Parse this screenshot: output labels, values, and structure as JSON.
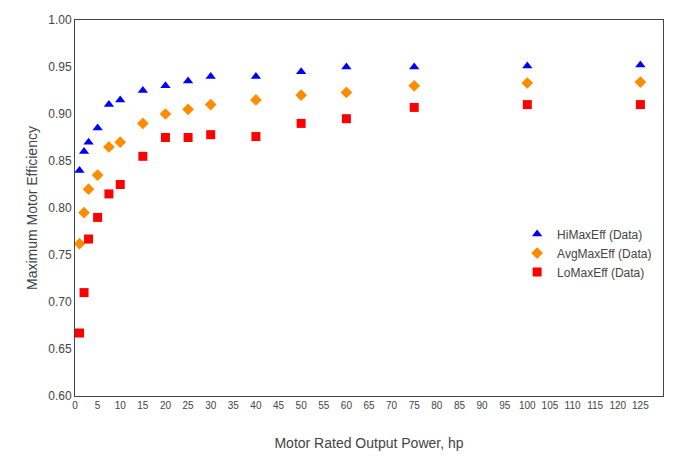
{
  "chart_data": {
    "type": "scatter",
    "x_label": "Motor Rated Output Power, hp",
    "y_label": "Maximum Motor Efficiency",
    "x": [
      1,
      2,
      3,
      5,
      7.5,
      10,
      15,
      20,
      25,
      30,
      40,
      50,
      60,
      75,
      100,
      125
    ],
    "series": [
      {
        "name": "HiMaxEff (Data)",
        "color": "#0000FF",
        "marker": "triangle",
        "values": [
          0.84,
          0.86,
          0.87,
          0.885,
          0.91,
          0.915,
          0.925,
          0.93,
          0.935,
          0.94,
          0.94,
          0.945,
          0.95,
          0.95,
          0.951,
          0.952
        ]
      },
      {
        "name": "AvgMaxEff (Data)",
        "color": "#FF8C00",
        "marker": "diamond",
        "values": [
          0.762,
          0.795,
          0.82,
          0.835,
          0.865,
          0.87,
          0.89,
          0.9,
          0.905,
          0.91,
          0.915,
          0.92,
          0.923,
          0.93,
          0.933,
          0.934
        ]
      },
      {
        "name": "LoMaxEff (Data)",
        "color": "#FF0000",
        "marker": "square",
        "values": [
          0.667,
          0.71,
          0.767,
          0.79,
          0.815,
          0.825,
          0.855,
          0.875,
          0.875,
          0.878,
          0.876,
          0.89,
          0.895,
          0.907,
          0.91,
          0.91
        ]
      }
    ],
    "xlim": [
      0,
      130
    ],
    "ylim": [
      0.6,
      1.0
    ],
    "xticks": [
      0,
      5,
      10,
      15,
      20,
      25,
      30,
      35,
      40,
      45,
      50,
      55,
      60,
      65,
      70,
      75,
      80,
      85,
      90,
      95,
      100,
      105,
      110,
      115,
      120,
      125
    ],
    "yticks": [
      {
        "value": 0.6,
        "label": "0.60"
      },
      0.65,
      {
        "value": 0.7,
        "label": "0.70"
      },
      0.75,
      {
        "value": 0.8,
        "label": "0.80"
      },
      0.85,
      {
        "value": 0.9,
        "label": "0.90"
      },
      0.95,
      {
        "value": 1.0,
        "label": "1.00"
      }
    ],
    "grid": false,
    "legend": "right"
  }
}
